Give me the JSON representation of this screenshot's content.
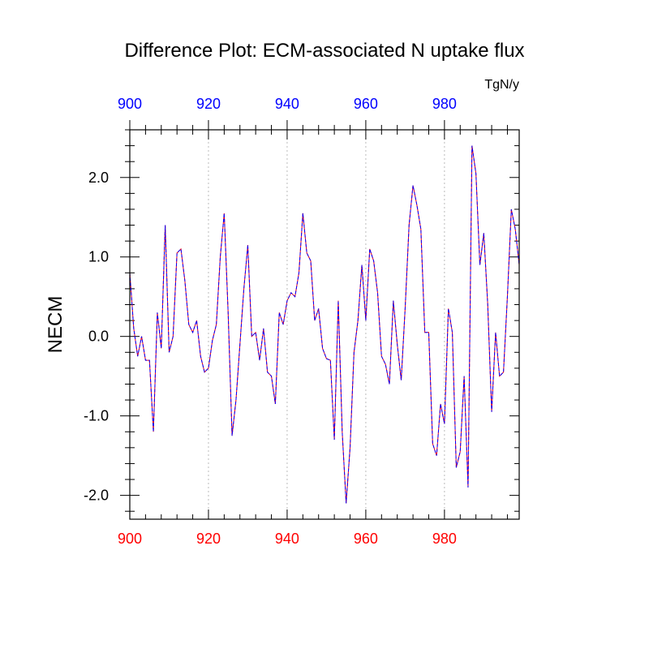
{
  "chart_data": {
    "type": "line",
    "title": "Difference Plot: ECM-associated N uptake flux",
    "units": "TgN/y",
    "xlabel": "",
    "ylabel": "NECM",
    "xlim": [
      900,
      999
    ],
    "ylim": [
      -2.3,
      2.6
    ],
    "x_ticks_bottom": [
      "900",
      "920",
      "940",
      "960",
      "980"
    ],
    "x_ticks_top": [
      "900",
      "920",
      "940",
      "960",
      "980"
    ],
    "x_tick_values": [
      900,
      920,
      940,
      960,
      980
    ],
    "y_ticks": [
      "2.0",
      "1.0",
      "0.0",
      "-1.0",
      "-2.0"
    ],
    "y_tick_values": [
      2.0,
      1.0,
      0.0,
      -1.0,
      -2.0
    ],
    "grid": "vertical dotted at major x ticks",
    "colors": {
      "bottom_axis_labels": "#ff0000",
      "top_axis_labels": "#0000ff",
      "series_a": "#ff0000",
      "series_b": "#0000ff"
    },
    "x": [
      900,
      901,
      902,
      903,
      904,
      905,
      906,
      907,
      908,
      909,
      910,
      911,
      912,
      913,
      914,
      915,
      916,
      917,
      918,
      919,
      920,
      921,
      922,
      923,
      924,
      925,
      926,
      927,
      928,
      929,
      930,
      931,
      932,
      933,
      934,
      935,
      936,
      937,
      938,
      939,
      940,
      941,
      942,
      943,
      944,
      945,
      946,
      947,
      948,
      949,
      950,
      951,
      952,
      953,
      954,
      955,
      956,
      957,
      958,
      959,
      960,
      961,
      962,
      963,
      964,
      965,
      966,
      967,
      968,
      969,
      970,
      971,
      972,
      973,
      974,
      975,
      976,
      977,
      978,
      979,
      980,
      981,
      982,
      983,
      984,
      985,
      986,
      987,
      988,
      989,
      990,
      991,
      992,
      993,
      994,
      995,
      996,
      997,
      998,
      999
    ],
    "series": [
      {
        "values": [
          0.8,
          0.1,
          -0.25,
          0.0,
          -0.3,
          -0.3,
          -1.2,
          0.3,
          -0.15,
          1.4,
          -0.2,
          0.0,
          1.05,
          1.1,
          0.7,
          0.15,
          0.05,
          0.2,
          -0.25,
          -0.45,
          -0.4,
          -0.05,
          0.15,
          1.0,
          1.55,
          0.3,
          -1.25,
          -0.8,
          -0.1,
          0.6,
          1.15,
          0.0,
          0.05,
          -0.3,
          0.1,
          -0.45,
          -0.5,
          -0.85,
          0.3,
          0.15,
          0.45,
          0.55,
          0.5,
          0.8,
          1.55,
          1.05,
          0.95,
          0.2,
          0.35,
          -0.15,
          -0.28,
          -0.3,
          -1.3,
          0.45,
          -1.2,
          -2.1,
          -1.4,
          -0.2,
          0.2,
          0.9,
          0.2,
          1.1,
          0.95,
          0.55,
          -0.25,
          -0.35,
          -0.6,
          0.45,
          -0.1,
          -0.55,
          0.35,
          1.4,
          1.9,
          1.65,
          1.35,
          0.05,
          0.05,
          -1.35,
          -1.5,
          -0.85,
          -1.1,
          0.35,
          0.05,
          -1.65,
          -1.45,
          -0.5,
          -1.9,
          2.4,
          2.05,
          0.9,
          1.3,
          0.4,
          -0.95,
          0.05,
          -0.5,
          -0.45,
          0.5,
          1.6,
          1.35,
          0.9
        ]
      }
    ]
  }
}
